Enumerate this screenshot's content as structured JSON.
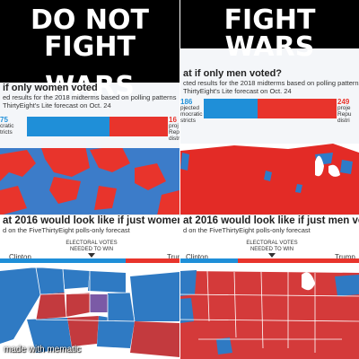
{
  "meme": {
    "left_caption_line1": "DO NOT FIGHT",
    "left_caption_line2": "WARS",
    "right_caption": "FIGHT WARS",
    "watermark": "made with mematic"
  },
  "top_left": {
    "headline": "if only women voted",
    "subtext_line1": "ed results for the 2018 midterms based on polling patterns",
    "subtext_line2": "ThirtyEight's Lite forecast on Oct. 24",
    "dem_count": "75",
    "dem_label_line1": "cratic",
    "dem_label_line2": "tricts",
    "rep_count": "16",
    "rep_label_line1": "proj",
    "rep_label_line2": "Rep",
    "rep_label_line3": "distr",
    "colors": {
      "dem": "#1f8fd8",
      "rep": "#e8342c"
    }
  },
  "top_right": {
    "headline": "at if only men voted?",
    "subtext_line1": "cted results for the 2018 midterms based on polling patterns a",
    "subtext_line2": "ThirtyEight's Lite forecast on Oct. 24",
    "dem_count": "186",
    "dem_label_line1": "pjected",
    "dem_label_line2": "mocratic",
    "dem_label_line3": "stricts",
    "rep_count": "249",
    "rep_label_line1": "proje",
    "rep_label_line2": "Repu",
    "rep_label_line3": "distri"
  },
  "bottom_left": {
    "headline": "at 2016 would look like if just women vot",
    "subtext": "d on the FiveThirtyEight polls-only forecast",
    "left_candidate": "Clinton",
    "right_candidate": "Trum",
    "ev_line1": "ELECTORAL VOTES",
    "ev_line2": "NEEDED TO WIN",
    "dem_share": 0.7
  },
  "bottom_right": {
    "headline": "at 2016 would look like if just men voted",
    "subtext": "d on the FiveThirtyEight polls-only forecast",
    "left_candidate": "Clinton",
    "right_candidate": "Trump",
    "ev_line1": "ELECTORAL VOTES",
    "ev_line2": "NEEDED TO WIN",
    "dem_share": 0.32
  }
}
